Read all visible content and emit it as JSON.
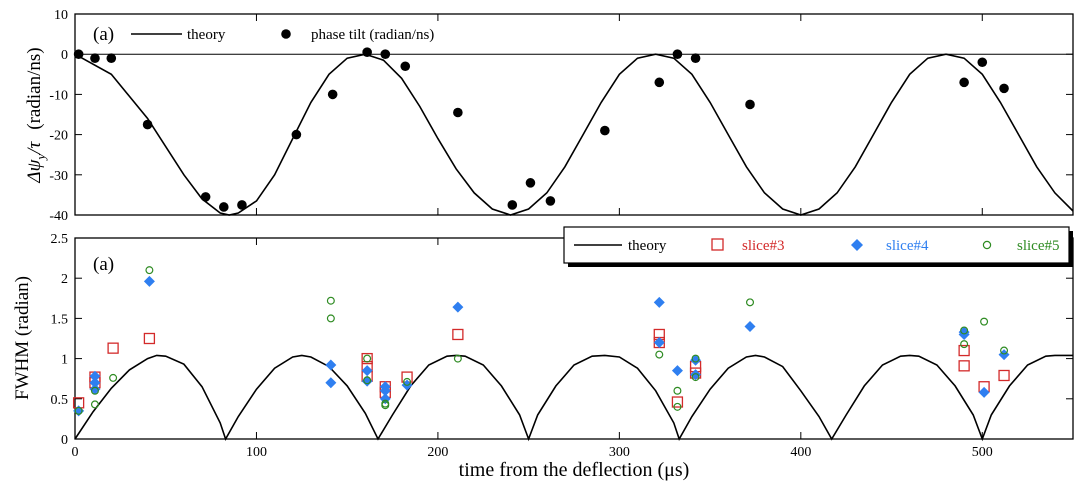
{
  "chart_data": [
    {
      "type": "line",
      "panel_label": "(a)",
      "ylabel_html": "Δψ<sub>y</sub>/τ  (radian/ns)",
      "ylabel_parts": [
        "Δψ",
        "y",
        "/τ",
        "(radian/ns)"
      ],
      "xlim": [
        0,
        550
      ],
      "ylim": [
        -40,
        10
      ],
      "yticks": [
        10,
        0,
        -10,
        -20,
        -30,
        -40
      ],
      "zero_line": true,
      "grid": false,
      "legend_placement": "top-left",
      "legend": [
        {
          "label": "theory",
          "marker": "line",
          "color": "#000000"
        },
        {
          "label": "phase tilt (radian/ns)",
          "marker": "filled-circle",
          "color": "#000000"
        }
      ],
      "series": [
        {
          "name": "theory",
          "kind": "line",
          "color": "#000000",
          "points": [
            [
              0,
              0
            ],
            [
              20,
              -5
            ],
            [
              40,
              -16
            ],
            [
              60,
              -30
            ],
            [
              70,
              -36
            ],
            [
              80,
              -39.5
            ],
            [
              85,
              -40
            ],
            [
              90,
              -39.5
            ],
            [
              100,
              -36.5
            ],
            [
              110,
              -30
            ],
            [
              120,
              -21
            ],
            [
              130,
              -12
            ],
            [
              140,
              -5
            ],
            [
              150,
              -1
            ],
            [
              160,
              0
            ],
            [
              170,
              -1.5
            ],
            [
              180,
              -6
            ],
            [
              190,
              -13
            ],
            [
              200,
              -21
            ],
            [
              210,
              -28.5
            ],
            [
              220,
              -34.5
            ],
            [
              230,
              -38.5
            ],
            [
              240,
              -40
            ],
            [
              250,
              -38.5
            ],
            [
              260,
              -34.5
            ],
            [
              270,
              -28
            ],
            [
              280,
              -20
            ],
            [
              290,
              -12
            ],
            [
              300,
              -5
            ],
            [
              310,
              -1
            ],
            [
              320,
              0
            ],
            [
              330,
              -1
            ],
            [
              340,
              -5
            ],
            [
              350,
              -12
            ],
            [
              360,
              -20
            ],
            [
              370,
              -28
            ],
            [
              380,
              -34.5
            ],
            [
              390,
              -38.5
            ],
            [
              400,
              -40
            ],
            [
              410,
              -38.5
            ],
            [
              420,
              -34.5
            ],
            [
              430,
              -28
            ],
            [
              440,
              -20
            ],
            [
              450,
              -12
            ],
            [
              460,
              -5
            ],
            [
              470,
              -1
            ],
            [
              480,
              0
            ],
            [
              490,
              -1
            ],
            [
              500,
              -5
            ],
            [
              510,
              -12
            ],
            [
              520,
              -20
            ],
            [
              530,
              -28
            ],
            [
              540,
              -34.5
            ],
            [
              550,
              -39
            ]
          ]
        },
        {
          "name": "phase tilt (radian/ns)",
          "kind": "scatter",
          "color": "#000000",
          "points": [
            [
              2,
              0
            ],
            [
              11,
              -1
            ],
            [
              20,
              -1
            ],
            [
              40,
              -17.5
            ],
            [
              72,
              -35.5
            ],
            [
              82,
              -38
            ],
            [
              92,
              -37.5
            ],
            [
              122,
              -20
            ],
            [
              142,
              -10
            ],
            [
              161,
              0.5
            ],
            [
              171,
              0
            ],
            [
              182,
              -3
            ],
            [
              211,
              -14.5
            ],
            [
              241,
              -37.5
            ],
            [
              251,
              -32
            ],
            [
              262,
              -36.5
            ],
            [
              292,
              -19
            ],
            [
              322,
              -7
            ],
            [
              332,
              0
            ],
            [
              342,
              -1
            ],
            [
              372,
              -12.5
            ],
            [
              490,
              -7
            ],
            [
              500,
              -2
            ],
            [
              512,
              -8.5
            ]
          ]
        }
      ]
    },
    {
      "type": "line",
      "panel_label": "(a)",
      "xlabel": "time from the deflection (μs)",
      "ylabel": "FWHM (radian)",
      "xlim": [
        0,
        550
      ],
      "ylim": [
        0,
        2.5
      ],
      "xticks": [
        0,
        100,
        200,
        300,
        400,
        500
      ],
      "yticks": [
        0,
        0.5,
        1,
        1.5,
        2,
        2.5
      ],
      "grid": false,
      "legend_placement": "top-right",
      "legend": [
        {
          "label": "theory",
          "marker": "line",
          "color": "#000000"
        },
        {
          "label": "slice#3",
          "marker": "open-square",
          "color": "#d32a2a"
        },
        {
          "label": "slice#4",
          "marker": "filled-diamond",
          "color": "#2f7ff0"
        },
        {
          "label": "slice#5",
          "marker": "open-circle",
          "color": "#2e8b22"
        }
      ],
      "series": [
        {
          "name": "theory",
          "kind": "line",
          "color": "#000000",
          "points": [
            [
              0,
              0
            ],
            [
              10,
              0.34
            ],
            [
              20,
              0.63
            ],
            [
              30,
              0.86
            ],
            [
              40,
              1.0
            ],
            [
              45,
              1.04
            ],
            [
              50,
              1.03
            ],
            [
              60,
              0.93
            ],
            [
              70,
              0.65
            ],
            [
              80,
              0.2
            ],
            [
              83,
              0
            ],
            [
              90,
              0.28
            ],
            [
              100,
              0.62
            ],
            [
              110,
              0.88
            ],
            [
              120,
              1.02
            ],
            [
              125,
              1.04
            ],
            [
              130,
              1.02
            ],
            [
              140,
              0.9
            ],
            [
              150,
              0.66
            ],
            [
              160,
              0.32
            ],
            [
              167,
              0
            ],
            [
              175,
              0.3
            ],
            [
              185,
              0.66
            ],
            [
              195,
              0.92
            ],
            [
              205,
              1.03
            ],
            [
              210,
              1.04
            ],
            [
              215,
              1.03
            ],
            [
              225,
              0.92
            ],
            [
              235,
              0.66
            ],
            [
              245,
              0.3
            ],
            [
              250,
              0
            ],
            [
              255,
              0.3
            ],
            [
              265,
              0.66
            ],
            [
              275,
              0.92
            ],
            [
              285,
              1.03
            ],
            [
              292,
              1.04
            ],
            [
              300,
              1.02
            ],
            [
              310,
              0.88
            ],
            [
              320,
              0.6
            ],
            [
              330,
              0.2
            ],
            [
              333,
              0
            ],
            [
              340,
              0.28
            ],
            [
              350,
              0.62
            ],
            [
              360,
              0.88
            ],
            [
              370,
              1.02
            ],
            [
              375,
              1.04
            ],
            [
              380,
              1.02
            ],
            [
              390,
              0.9
            ],
            [
              400,
              0.6
            ],
            [
              410,
              0.28
            ],
            [
              417,
              0
            ],
            [
              425,
              0.3
            ],
            [
              435,
              0.66
            ],
            [
              445,
              0.92
            ],
            [
              455,
              1.03
            ],
            [
              460,
              1.04
            ],
            [
              465,
              1.03
            ],
            [
              475,
              0.92
            ],
            [
              485,
              0.66
            ],
            [
              495,
              0.3
            ],
            [
              500,
              0
            ],
            [
              505,
              0.3
            ],
            [
              515,
              0.66
            ],
            [
              525,
              0.92
            ],
            [
              535,
              1.03
            ],
            [
              540,
              1.04
            ],
            [
              550,
              1.04
            ]
          ]
        },
        {
          "name": "slice#3",
          "kind": "scatter",
          "marker": "open-square",
          "color": "#d32a2a",
          "points": [
            [
              2,
              0.45
            ],
            [
              11,
              0.7
            ],
            [
              11,
              0.77
            ],
            [
              21,
              1.13
            ],
            [
              41,
              1.25
            ],
            [
              161,
              1.0
            ],
            [
              161,
              0.9
            ],
            [
              161,
              0.78
            ],
            [
              171,
              0.65
            ],
            [
              171,
              0.58
            ],
            [
              183,
              0.77
            ],
            [
              211,
              1.3
            ],
            [
              322,
              1.3
            ],
            [
              322,
              1.2
            ],
            [
              332,
              0.46
            ],
            [
              342,
              0.9
            ],
            [
              342,
              0.82
            ],
            [
              490,
              1.1
            ],
            [
              490,
              0.91
            ],
            [
              501,
              0.65
            ],
            [
              512,
              0.79
            ]
          ]
        },
        {
          "name": "slice#4",
          "kind": "scatter",
          "marker": "filled-diamond",
          "color": "#2f7ff0",
          "points": [
            [
              2,
              0.35
            ],
            [
              11,
              0.78
            ],
            [
              11,
              0.7
            ],
            [
              11,
              0.62
            ],
            [
              41,
              1.96
            ],
            [
              141,
              0.92
            ],
            [
              141,
              0.7
            ],
            [
              161,
              0.85
            ],
            [
              161,
              0.72
            ],
            [
              171,
              0.65
            ],
            [
              171,
              0.6
            ],
            [
              171,
              0.5
            ],
            [
              183,
              0.67
            ],
            [
              211,
              1.64
            ],
            [
              322,
              1.7
            ],
            [
              322,
              1.2
            ],
            [
              332,
              0.85
            ],
            [
              342,
              0.98
            ],
            [
              342,
              0.8
            ],
            [
              372,
              1.4
            ],
            [
              490,
              1.33
            ],
            [
              490,
              1.3
            ],
            [
              501,
              0.58
            ],
            [
              512,
              1.05
            ]
          ]
        },
        {
          "name": "slice#5",
          "kind": "scatter",
          "marker": "open-circle",
          "color": "#2e8b22",
          "points": [
            [
              2,
              0.35
            ],
            [
              11,
              0.43
            ],
            [
              11,
              0.6
            ],
            [
              21,
              0.76
            ],
            [
              41,
              2.1
            ],
            [
              141,
              1.72
            ],
            [
              141,
              1.5
            ],
            [
              161,
              1.0
            ],
            [
              161,
              0.73
            ],
            [
              171,
              0.44
            ],
            [
              171,
              0.42
            ],
            [
              183,
              0.71
            ],
            [
              211,
              1.0
            ],
            [
              322,
              1.05
            ],
            [
              332,
              0.6
            ],
            [
              332,
              0.4
            ],
            [
              342,
              1.0
            ],
            [
              342,
              0.77
            ],
            [
              372,
              1.7
            ],
            [
              490,
              1.35
            ],
            [
              490,
              1.18
            ],
            [
              501,
              1.46
            ],
            [
              512,
              1.1
            ]
          ]
        }
      ]
    }
  ]
}
